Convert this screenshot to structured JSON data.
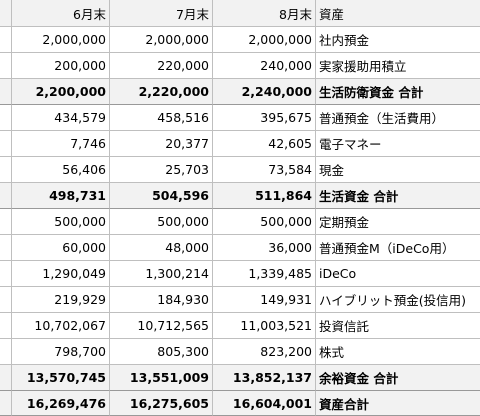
{
  "header": {
    "month1": "6月末",
    "month2": "7月末",
    "month3": "8月末",
    "label": "資産"
  },
  "rows": [
    {
      "v1": "2,000,000",
      "v2": "2,000,000",
      "v3": "2,000,000",
      "label": "社内預金"
    },
    {
      "v1": "200,000",
      "v2": "220,000",
      "v3": "240,000",
      "label": "実家援助用積立"
    },
    {
      "v1": "2,200,000",
      "v2": "2,220,000",
      "v3": "2,240,000",
      "label": "生活防衛資金 合計"
    },
    {
      "v1": "434,579",
      "v2": "458,516",
      "v3": "395,675",
      "label": "普通預金（生活費用）"
    },
    {
      "v1": "7,746",
      "v2": "20,377",
      "v3": "42,605",
      "label": "電子マネー"
    },
    {
      "v1": "56,406",
      "v2": "25,703",
      "v3": "73,584",
      "label": "現金"
    },
    {
      "v1": "498,731",
      "v2": "504,596",
      "v3": "511,864",
      "label": "生活資金 合計"
    },
    {
      "v1": "500,000",
      "v2": "500,000",
      "v3": "500,000",
      "label": "定期預金"
    },
    {
      "v1": "60,000",
      "v2": "48,000",
      "v3": "36,000",
      "label": "普通預金M（iDeCo用）"
    },
    {
      "v1": "1,290,049",
      "v2": "1,300,214",
      "v3": "1,339,485",
      "label": "iDeCo"
    },
    {
      "v1": "219,929",
      "v2": "184,930",
      "v3": "149,931",
      "label": "ハイブリット預金(投信用)"
    },
    {
      "v1": "10,702,067",
      "v2": "10,712,565",
      "v3": "11,003,521",
      "label": "投資信託"
    },
    {
      "v1": "798,700",
      "v2": "805,300",
      "v3": "823,200",
      "label": "株式"
    },
    {
      "v1": "13,570,745",
      "v2": "13,551,009",
      "v3": "13,852,137",
      "label": "余裕資金 合計"
    },
    {
      "v1": "16,269,476",
      "v2": "16,275,605",
      "v3": "16,604,001",
      "label": "資産合計"
    }
  ]
}
